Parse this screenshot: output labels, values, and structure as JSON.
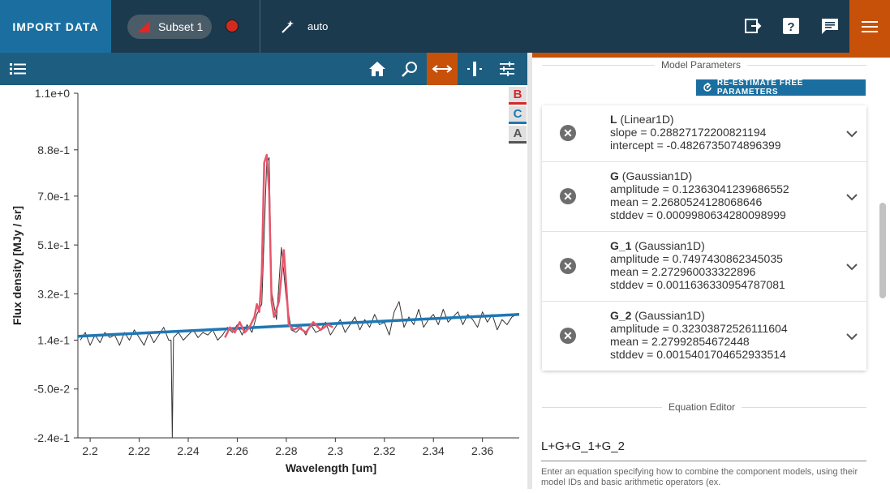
{
  "topbar": {
    "import_label": "IMPORT DATA",
    "subset_label": "Subset 1",
    "mode_label": "auto"
  },
  "icons": {
    "home": "home-icon",
    "zoom": "zoom-icon",
    "pan": "horizontal-pan-icon",
    "select": "range-select-icon",
    "settings": "sliders-icon",
    "export": "export-icon",
    "help": "help-icon",
    "feedback": "chat-icon",
    "menu": "hamburger-icon",
    "layers": "layer-list-icon",
    "wand": "magic-wand-icon"
  },
  "colors": {
    "accent": "#c75109",
    "topbar": "#1c3a4e",
    "toolbar": "#1d5e80",
    "import": "#1a6fa0",
    "data_line": "#333333",
    "fit_line": "#1f77b4",
    "subset_line": "#e8566b"
  },
  "legend": [
    "B",
    "C",
    "A"
  ],
  "chart_data": {
    "type": "line",
    "xlabel": "Wavelength [um]",
    "ylabel": "Flux density [MJy / sr]",
    "xlim": [
      2.195,
      2.375
    ],
    "ylim": [
      -0.24,
      1.1
    ],
    "xticks": [
      "2.2",
      "2.22",
      "2.24",
      "2.26",
      "2.28",
      "2.3",
      "2.32",
      "2.34",
      "2.36"
    ],
    "yticks": [
      "1.1e+0",
      "8.8e-1",
      "7.0e-1",
      "5.1e-1",
      "3.2e-1",
      "1.4e-1",
      "-5.0e-2",
      "-2.4e-1"
    ],
    "series": [
      {
        "name": "A",
        "x": [
          2.196,
          2.198,
          2.2,
          2.202,
          2.204,
          2.206,
          2.208,
          2.21,
          2.212,
          2.214,
          2.216,
          2.218,
          2.22,
          2.222,
          2.224,
          2.226,
          2.228,
          2.23,
          2.232,
          2.233,
          2.2335,
          2.234,
          2.236,
          2.238,
          2.24,
          2.242,
          2.244,
          2.246,
          2.248,
          2.25,
          2.252,
          2.254,
          2.256,
          2.258,
          2.26,
          2.262,
          2.264,
          2.266,
          2.268,
          2.27,
          2.272,
          2.273,
          2.274,
          2.276,
          2.278,
          2.28,
          2.282,
          2.284,
          2.286,
          2.288,
          2.29,
          2.292,
          2.294,
          2.296,
          2.298,
          2.3,
          2.302,
          2.304,
          2.306,
          2.308,
          2.31,
          2.312,
          2.314,
          2.316,
          2.318,
          2.32,
          2.322,
          2.324,
          2.326,
          2.328,
          2.33,
          2.332,
          2.334,
          2.336,
          2.338,
          2.34,
          2.342,
          2.344,
          2.346,
          2.348,
          2.35,
          2.352,
          2.354,
          2.356,
          2.358,
          2.36,
          2.362,
          2.364,
          2.366,
          2.368,
          2.37,
          2.372,
          2.374
        ],
        "y": [
          0.14,
          0.17,
          0.12,
          0.16,
          0.13,
          0.17,
          0.15,
          0.16,
          0.12,
          0.17,
          0.14,
          0.18,
          0.15,
          0.12,
          0.17,
          0.13,
          0.16,
          0.19,
          0.14,
          0.14,
          -0.24,
          0.15,
          0.17,
          0.14,
          0.16,
          0.18,
          0.15,
          0.17,
          0.16,
          0.18,
          0.14,
          0.16,
          0.19,
          0.17,
          0.2,
          0.16,
          0.2,
          0.17,
          0.24,
          0.28,
          0.83,
          0.85,
          0.33,
          0.22,
          0.5,
          0.3,
          0.18,
          0.17,
          0.19,
          0.16,
          0.2,
          0.17,
          0.18,
          0.21,
          0.16,
          0.19,
          0.22,
          0.17,
          0.2,
          0.23,
          0.18,
          0.22,
          0.19,
          0.24,
          0.2,
          0.21,
          0.16,
          0.25,
          0.29,
          0.19,
          0.23,
          0.2,
          0.26,
          0.19,
          0.22,
          0.24,
          0.2,
          0.26,
          0.21,
          0.23,
          0.25,
          0.2,
          0.24,
          0.22,
          0.19,
          0.25,
          0.21,
          0.24,
          0.18,
          0.22,
          0.2,
          0.23,
          0.24
        ]
      },
      {
        "name": "C",
        "x": [
          2.195,
          2.375
        ],
        "y": [
          0.155,
          0.24
        ]
      },
      {
        "name": "B",
        "x": [
          2.255,
          2.257,
          2.259,
          2.261,
          2.263,
          2.265,
          2.267,
          2.268,
          2.269,
          2.27,
          2.271,
          2.272,
          2.273,
          2.274,
          2.275,
          2.277,
          2.279,
          2.28,
          2.281,
          2.283,
          2.285,
          2.288,
          2.291,
          2.294,
          2.297,
          2.299
        ],
        "y": [
          0.15,
          0.19,
          0.17,
          0.21,
          0.17,
          0.19,
          0.23,
          0.28,
          0.25,
          0.4,
          0.83,
          0.86,
          0.72,
          0.29,
          0.23,
          0.29,
          0.49,
          0.35,
          0.2,
          0.18,
          0.19,
          0.17,
          0.21,
          0.18,
          0.2,
          0.19
        ]
      }
    ]
  },
  "panel": {
    "model_params_title": "Model Parameters",
    "reestimate_label": "RE-ESTIMATE FREE PARAMETERS",
    "models": [
      {
        "id": "L",
        "type": "(Linear1D)",
        "lines": [
          "slope = 0.28827172200821194",
          "intercept = -0.4826735074896399"
        ]
      },
      {
        "id": "G",
        "type": "(Gaussian1D)",
        "lines": [
          "amplitude = 0.12363041239686552",
          "mean = 2.2680524128068646",
          "stddev = 0.0009980634280098999"
        ]
      },
      {
        "id": "G_1",
        "type": "(Gaussian1D)",
        "lines": [
          "amplitude = 0.7497430862345035",
          "mean = 2.272960033322896",
          "stddev = 0.0011636330954787081"
        ]
      },
      {
        "id": "G_2",
        "type": "(Gaussian1D)",
        "lines": [
          "amplitude = 0.32303872526111604",
          "mean = 2.27992854672448",
          "stddev = 0.0015401704652933514"
        ]
      }
    ],
    "equation_title": "Equation Editor",
    "equation_value": "L+G+G_1+G_2",
    "equation_hint": "Enter an equation specifying how to combine the component models, using their model IDs and basic arithmetic operators (ex."
  }
}
